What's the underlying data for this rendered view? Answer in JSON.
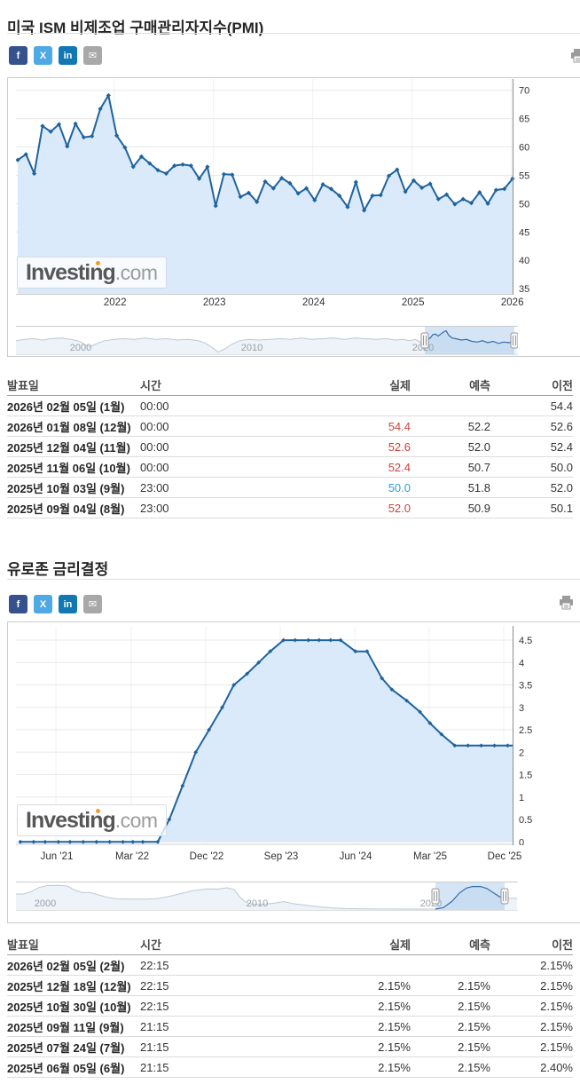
{
  "palette": {
    "line": "#1f639e",
    "fill": "#daeafa",
    "nav_selection": "#d5e5f6",
    "nav_line_selected": "#336fa8",
    "nav_fill_selected": "#c9ddf2",
    "nav_line_faint": "#bcc8d6",
    "nav_fill_faint": "#eef3f9",
    "red": "#cb4439",
    "blue": "#2f9ed6",
    "grid": "#e8e8e8",
    "axis": "#8c8c8c"
  },
  "share_buttons": [
    {
      "name": "facebook",
      "label": "f",
      "color": "#35528c"
    },
    {
      "name": "x-twitter",
      "label": "X",
      "color": "#4fa9e4"
    },
    {
      "name": "linkedin",
      "label": "in",
      "color": "#1178b3"
    },
    {
      "name": "email",
      "label": "✉",
      "color": "#a8a8a8"
    }
  ],
  "watermark": {
    "text": "Investing",
    "suffix": ".com"
  },
  "sections": [
    {
      "title": "미국 ISM 비제조업 구매관리자지수(PMI)",
      "table": {
        "headers": [
          "발표일",
          "시간",
          "실제",
          "예측",
          "이전"
        ],
        "rows": [
          {
            "date": "2026년 02월 05일 (1월)",
            "time": "00:00",
            "actual": "",
            "forecast": "",
            "previous": "54.4",
            "actual_color": null
          },
          {
            "date": "2026년 01월 08일 (12월)",
            "time": "00:00",
            "actual": "54.4",
            "forecast": "52.2",
            "previous": "52.6",
            "actual_color": "red"
          },
          {
            "date": "2025년 12월 04일 (11월)",
            "time": "00:00",
            "actual": "52.6",
            "forecast": "52.0",
            "previous": "52.4",
            "actual_color": "red"
          },
          {
            "date": "2025년 11월 06일 (10월)",
            "time": "00:00",
            "actual": "52.4",
            "forecast": "50.7",
            "previous": "50.0",
            "actual_color": "red"
          },
          {
            "date": "2025년 10월 03일 (9월)",
            "time": "23:00",
            "actual": "50.0",
            "forecast": "51.8",
            "previous": "52.0",
            "actual_color": "blue"
          },
          {
            "date": "2025년 09월 04일 (8월)",
            "time": "23:00",
            "actual": "52.0",
            "forecast": "50.9",
            "previous": "50.1",
            "actual_color": "red"
          }
        ]
      }
    },
    {
      "title": "유로존 금리결정",
      "table": {
        "headers": [
          "발표일",
          "시간",
          "실제",
          "예측",
          "이전"
        ],
        "rows": [
          {
            "date": "2026년 02월 05일 (2월)",
            "time": "22:15",
            "actual": "",
            "forecast": "",
            "previous": "2.15%",
            "actual_color": null
          },
          {
            "date": "2025년 12월 18일 (12월)",
            "time": "22:15",
            "actual": "2.15%",
            "forecast": "2.15%",
            "previous": "2.15%",
            "actual_color": null
          },
          {
            "date": "2025년 10월 30일 (10월)",
            "time": "22:15",
            "actual": "2.15%",
            "forecast": "2.15%",
            "previous": "2.15%",
            "actual_color": null
          },
          {
            "date": "2025년 09월 11일 (9월)",
            "time": "21:15",
            "actual": "2.15%",
            "forecast": "2.15%",
            "previous": "2.15%",
            "actual_color": null
          },
          {
            "date": "2025년 07월 24일 (7월)",
            "time": "21:15",
            "actual": "2.15%",
            "forecast": "2.15%",
            "previous": "2.15%",
            "actual_color": null
          },
          {
            "date": "2025년 06월 05일 (6월)",
            "time": "21:15",
            "actual": "2.15%",
            "forecast": "2.15%",
            "previous": "2.40%",
            "actual_color": null
          }
        ]
      }
    }
  ],
  "chart_data": [
    {
      "type": "area",
      "title": "미국 ISM 비제조업 구매관리자지수(PMI)",
      "x_tick_labels": [
        "2022",
        "2023",
        "2024",
        "2025",
        "2026"
      ],
      "y_ticks": [
        70,
        65,
        60,
        55,
        50,
        45,
        40,
        35
      ],
      "ylim": [
        34,
        72
      ],
      "frequency": "monthly",
      "x_unit": "months since Jan 2021 release dates; index i plotted monthly",
      "values": [
        57.7,
        58.7,
        55.3,
        63.7,
        62.7,
        64.0,
        60.1,
        64.1,
        61.7,
        61.9,
        66.7,
        69.1,
        62.0,
        59.9,
        56.5,
        58.3,
        57.1,
        55.9,
        55.3,
        56.7,
        56.9,
        56.7,
        54.4,
        56.5,
        49.6,
        55.2,
        55.1,
        51.2,
        51.9,
        50.3,
        53.9,
        52.7,
        54.5,
        53.6,
        51.8,
        52.7,
        50.6,
        53.4,
        52.6,
        51.4,
        49.4,
        53.8,
        48.8,
        51.4,
        51.5,
        54.9,
        56.0,
        52.1,
        54.1,
        52.8,
        53.5,
        50.8,
        51.6,
        49.9,
        50.8,
        50.1,
        52.0,
        50.0,
        52.4,
        52.6,
        54.4
      ],
      "navigator": {
        "year_labels": [
          "2000",
          "2010",
          "2020"
        ],
        "series": [
          [
            0,
            54
          ],
          [
            10,
            56
          ],
          [
            20,
            57
          ],
          [
            30,
            55
          ],
          [
            40,
            57
          ],
          [
            52,
            58
          ],
          [
            62,
            56
          ],
          [
            72,
            53
          ],
          [
            78,
            48
          ],
          [
            84,
            45
          ],
          [
            90,
            49
          ],
          [
            100,
            54
          ],
          [
            110,
            56
          ],
          [
            122,
            57
          ],
          [
            134,
            56
          ],
          [
            146,
            58
          ],
          [
            158,
            56
          ],
          [
            170,
            57
          ],
          [
            182,
            55
          ],
          [
            194,
            56
          ],
          [
            206,
            54
          ],
          [
            214,
            50
          ],
          [
            222,
            43
          ],
          [
            228,
            37
          ],
          [
            236,
            42
          ],
          [
            244,
            49
          ],
          [
            252,
            54
          ],
          [
            262,
            56
          ],
          [
            274,
            55
          ],
          [
            286,
            56
          ],
          [
            298,
            57
          ],
          [
            310,
            56
          ],
          [
            322,
            58
          ],
          [
            334,
            56
          ],
          [
            346,
            57
          ],
          [
            358,
            58
          ],
          [
            370,
            56
          ],
          [
            382,
            58
          ],
          [
            394,
            57
          ],
          [
            406,
            56
          ],
          [
            418,
            57
          ],
          [
            428,
            55
          ],
          [
            436,
            56
          ],
          [
            444,
            54
          ],
          [
            450,
            56
          ],
          [
            456,
            52
          ],
          [
            460,
            41
          ],
          [
            464,
            55
          ],
          [
            467,
            58
          ],
          [
            470,
            63
          ],
          [
            473,
            64
          ],
          [
            476,
            61
          ],
          [
            479,
            64
          ],
          [
            482,
            67
          ],
          [
            485,
            69
          ],
          [
            488,
            62
          ],
          [
            492,
            58
          ],
          [
            496,
            57
          ],
          [
            502,
            55
          ],
          [
            508,
            56
          ],
          [
            514,
            53
          ],
          [
            520,
            52
          ],
          [
            526,
            54
          ],
          [
            532,
            51
          ],
          [
            538,
            53
          ],
          [
            544,
            50
          ],
          [
            550,
            52
          ],
          [
            556,
            51
          ],
          [
            565,
            54
          ]
        ]
      }
    },
    {
      "type": "area",
      "title": "유로존 금리결정",
      "x_tick_labels": [
        "Jun '21",
        "Mar '22",
        "Dec '22",
        "Sep '23",
        "Jun '24",
        "Mar '25",
        "Dec '25"
      ],
      "y_ticks": [
        4.5,
        4,
        3.5,
        3,
        2.5,
        2,
        1.5,
        1,
        0.5,
        0
      ],
      "ylim": [
        0,
        4.8
      ],
      "unit": "%",
      "x_unit": "months since Jan 2021 (rate decision meetings)",
      "points": [
        [
          0.7,
          0
        ],
        [
          2.3,
          0
        ],
        [
          3.7,
          0
        ],
        [
          5.3,
          0
        ],
        [
          6.7,
          0
        ],
        [
          8.3,
          0
        ],
        [
          9.9,
          0
        ],
        [
          11.5,
          0
        ],
        [
          13.1,
          0
        ],
        [
          14.3,
          0
        ],
        [
          15.5,
          0
        ],
        [
          17.3,
          0
        ],
        [
          18.7,
          0.5
        ],
        [
          20.3,
          1.25
        ],
        [
          21.9,
          2.0
        ],
        [
          23.5,
          2.5
        ],
        [
          25.1,
          3.0
        ],
        [
          26.5,
          3.5
        ],
        [
          28.1,
          3.75
        ],
        [
          29.5,
          4.0
        ],
        [
          30.9,
          4.25
        ],
        [
          32.5,
          4.5
        ],
        [
          33.9,
          4.5
        ],
        [
          35.5,
          4.5
        ],
        [
          36.8,
          4.5
        ],
        [
          38.2,
          4.5
        ],
        [
          39.4,
          4.5
        ],
        [
          41.2,
          4.25
        ],
        [
          42.6,
          4.25
        ],
        [
          44.4,
          3.65
        ],
        [
          45.6,
          3.4
        ],
        [
          47.4,
          3.15
        ],
        [
          49.0,
          2.9
        ],
        [
          50.2,
          2.65
        ],
        [
          51.6,
          2.4
        ],
        [
          53.2,
          2.15
        ],
        [
          54.8,
          2.15
        ],
        [
          56.4,
          2.15
        ],
        [
          58.0,
          2.15
        ],
        [
          59.6,
          2.15
        ]
      ],
      "navigator": {
        "year_labels": [
          "2000",
          "2010",
          "2020"
        ],
        "series": [
          [
            0,
            3.0
          ],
          [
            8,
            3.0
          ],
          [
            16,
            3.4
          ],
          [
            26,
            4.3
          ],
          [
            36,
            4.7
          ],
          [
            48,
            4.75
          ],
          [
            58,
            4.6
          ],
          [
            66,
            3.8
          ],
          [
            74,
            3.3
          ],
          [
            84,
            3.3
          ],
          [
            94,
            2.8
          ],
          [
            104,
            2.3
          ],
          [
            114,
            2.05
          ],
          [
            130,
            2.0
          ],
          [
            146,
            2.0
          ],
          [
            160,
            2.1
          ],
          [
            172,
            2.5
          ],
          [
            186,
            3.1
          ],
          [
            200,
            3.7
          ],
          [
            214,
            4.0
          ],
          [
            228,
            4.0
          ],
          [
            238,
            4.25
          ],
          [
            246,
            3.9
          ],
          [
            252,
            2.5
          ],
          [
            258,
            1.5
          ],
          [
            266,
            1.0
          ],
          [
            280,
            1.0
          ],
          [
            292,
            1.2
          ],
          [
            302,
            1.5
          ],
          [
            312,
            1.1
          ],
          [
            326,
            0.8
          ],
          [
            340,
            0.5
          ],
          [
            356,
            0.25
          ],
          [
            372,
            0.1
          ],
          [
            392,
            0.05
          ],
          [
            420,
            0.02
          ],
          [
            450,
            0.0
          ],
          [
            473,
            0.0
          ],
          [
            482,
            0.3
          ],
          [
            492,
            1.6
          ],
          [
            500,
            3.2
          ],
          [
            508,
            4.2
          ],
          [
            515,
            4.5
          ],
          [
            524,
            4.5
          ],
          [
            531,
            4.1
          ],
          [
            538,
            3.3
          ],
          [
            545,
            2.5
          ],
          [
            551,
            2.15
          ],
          [
            565,
            2.15
          ]
        ]
      }
    }
  ]
}
